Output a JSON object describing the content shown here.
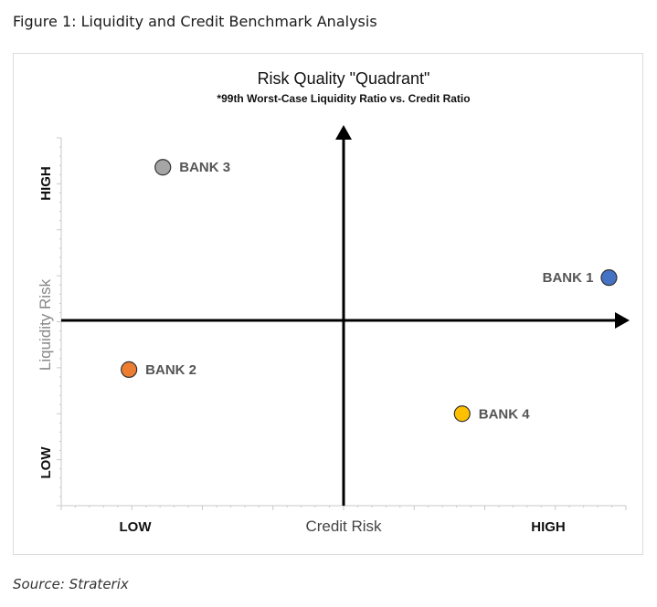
{
  "figure_caption": "Figure 1: Liquidity and Credit Benchmark Analysis",
  "source": "Source: Straterix",
  "chart_data": {
    "type": "scatter",
    "title": "Risk Quality \"Quadrant\"",
    "subtitle": "*99th Worst-Case Liquidity Ratio vs. Credit Ratio",
    "xlabel": "Credit Risk",
    "ylabel": "Liquidity Risk",
    "x_low_label": "LOW",
    "x_high_label": "HIGH",
    "y_high_label": "HIGH",
    "y_low_label": "LOW",
    "xlim": [
      0,
      10
    ],
    "ylim": [
      0,
      10
    ],
    "grid": false,
    "points": [
      {
        "label": "BANK 1",
        "x": 9.7,
        "y": 6.2,
        "color": "#4472c4"
      },
      {
        "label": "BANK 2",
        "x": 1.2,
        "y": 3.7,
        "color": "#ed7d31"
      },
      {
        "label": "BANK 3",
        "x": 1.8,
        "y": 9.2,
        "color": "#a5a5a5"
      },
      {
        "label": "BANK 4",
        "x": 7.1,
        "y": 2.5,
        "color": "#ffc000"
      }
    ]
  }
}
